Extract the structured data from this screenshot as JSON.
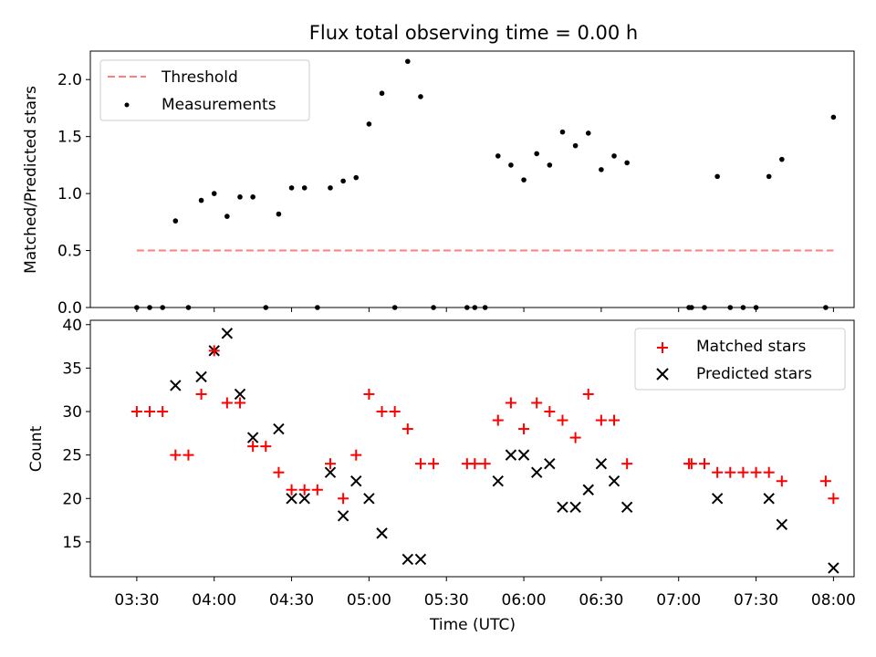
{
  "figure": {
    "title": "Flux total observing time = 0.00 h"
  },
  "chart_data": [
    {
      "type": "scatter",
      "title": "Flux total observing time = 0.00 h",
      "xlabel": "",
      "ylabel": "Matched/Predicted stars",
      "xlim": [
        "03:12",
        "08:08"
      ],
      "ylim": [
        0,
        2.25
      ],
      "yticks": [
        0.0,
        0.5,
        1.0,
        1.5,
        2.0
      ],
      "ytick_labels": [
        "0.0",
        "0.5",
        "1.0",
        "1.5",
        "2.0"
      ],
      "grid": false,
      "legend_position": "top-left",
      "series": [
        {
          "name": "Threshold",
          "kind": "dashed-line",
          "color": "#ff7f7f",
          "x": [
            "03:30",
            "08:00"
          ],
          "y": [
            0.5,
            0.5
          ]
        },
        {
          "name": "Measurements",
          "kind": "dot",
          "color": "#000000",
          "x": [
            "03:30",
            "03:35",
            "03:40",
            "03:45",
            "03:50",
            "03:55",
            "04:00",
            "04:05",
            "04:10",
            "04:15",
            "04:20",
            "04:25",
            "04:30",
            "04:35",
            "04:40",
            "04:45",
            "04:50",
            "04:55",
            "05:00",
            "05:05",
            "05:10",
            "05:15",
            "05:20",
            "05:25",
            "05:38",
            "05:41",
            "05:45",
            "05:50",
            "05:55",
            "06:00",
            "06:05",
            "06:10",
            "06:15",
            "06:20",
            "06:25",
            "06:30",
            "06:35",
            "06:40",
            "07:04",
            "07:05",
            "07:10",
            "07:15",
            "07:20",
            "07:25",
            "07:30",
            "07:35",
            "07:40",
            "07:57",
            "08:00"
          ],
          "y": [
            0.0,
            0.0,
            0.0,
            0.76,
            0.0,
            0.94,
            1.0,
            0.8,
            0.97,
            0.97,
            0.0,
            0.82,
            1.05,
            1.05,
            0.0,
            1.05,
            1.11,
            1.14,
            1.61,
            1.88,
            0.0,
            2.16,
            1.85,
            0.0,
            0.0,
            0.0,
            0.0,
            1.33,
            1.25,
            1.12,
            1.35,
            1.25,
            1.54,
            1.42,
            1.53,
            1.21,
            1.33,
            1.27,
            0.0,
            0.0,
            0.0,
            1.15,
            0.0,
            0.0,
            0.0,
            1.15,
            1.3,
            0.0,
            1.67
          ]
        }
      ]
    },
    {
      "type": "scatter",
      "title": "",
      "xlabel": "Time (UTC)",
      "ylabel": "Count",
      "xlim": [
        "03:12",
        "08:08"
      ],
      "ylim": [
        11,
        40.5
      ],
      "yticks": [
        15,
        20,
        25,
        30,
        35,
        40
      ],
      "ytick_labels": [
        "15",
        "20",
        "25",
        "30",
        "35",
        "40"
      ],
      "xticks": [
        "03:30",
        "04:00",
        "04:30",
        "05:00",
        "05:30",
        "06:00",
        "06:30",
        "07:00",
        "07:30",
        "08:00"
      ],
      "xtick_labels": [
        "03:30",
        "04:00",
        "04:30",
        "05:00",
        "05:30",
        "06:00",
        "06:30",
        "07:00",
        "07:30",
        "08:00"
      ],
      "grid": false,
      "legend_position": "top-right",
      "series": [
        {
          "name": "Matched stars",
          "marker": "plus",
          "color": "#ff0000",
          "x": [
            "03:30",
            "03:35",
            "03:40",
            "03:45",
            "03:50",
            "03:55",
            "04:00",
            "04:05",
            "04:10",
            "04:15",
            "04:20",
            "04:25",
            "04:30",
            "04:35",
            "04:40",
            "04:45",
            "04:50",
            "04:55",
            "05:00",
            "05:05",
            "05:10",
            "05:15",
            "05:20",
            "05:25",
            "05:38",
            "05:41",
            "05:45",
            "05:50",
            "05:55",
            "06:00",
            "06:05",
            "06:10",
            "06:15",
            "06:20",
            "06:25",
            "06:30",
            "06:35",
            "06:40",
            "07:04",
            "07:05",
            "07:10",
            "07:15",
            "07:20",
            "07:25",
            "07:30",
            "07:35",
            "07:40",
            "07:57",
            "08:00"
          ],
          "y": [
            30,
            30,
            30,
            25,
            25,
            32,
            37,
            31,
            31,
            26,
            26,
            23,
            21,
            21,
            21,
            24,
            20,
            25,
            32,
            30,
            30,
            28,
            24,
            24,
            24,
            24,
            24,
            29,
            31,
            28,
            31,
            30,
            29,
            27,
            32,
            29,
            29,
            24,
            24,
            24,
            24,
            23,
            23,
            23,
            23,
            23,
            22,
            22,
            20
          ]
        },
        {
          "name": "Predicted stars",
          "marker": "x",
          "color": "#000000",
          "x": [
            "03:45",
            "03:55",
            "04:00",
            "04:05",
            "04:10",
            "04:15",
            "04:25",
            "04:30",
            "04:35",
            "04:45",
            "04:50",
            "04:55",
            "05:00",
            "05:05",
            "05:15",
            "05:20",
            "05:50",
            "05:55",
            "06:00",
            "06:05",
            "06:10",
            "06:15",
            "06:20",
            "06:25",
            "06:30",
            "06:35",
            "06:40",
            "07:15",
            "07:35",
            "07:40",
            "08:00"
          ],
          "y": [
            33,
            34,
            37,
            39,
            32,
            27,
            28,
            20,
            20,
            23,
            18,
            22,
            20,
            16,
            13,
            13,
            22,
            25,
            25,
            23,
            24,
            19,
            19,
            21,
            24,
            22,
            19,
            20,
            20,
            17,
            12
          ]
        }
      ]
    }
  ]
}
